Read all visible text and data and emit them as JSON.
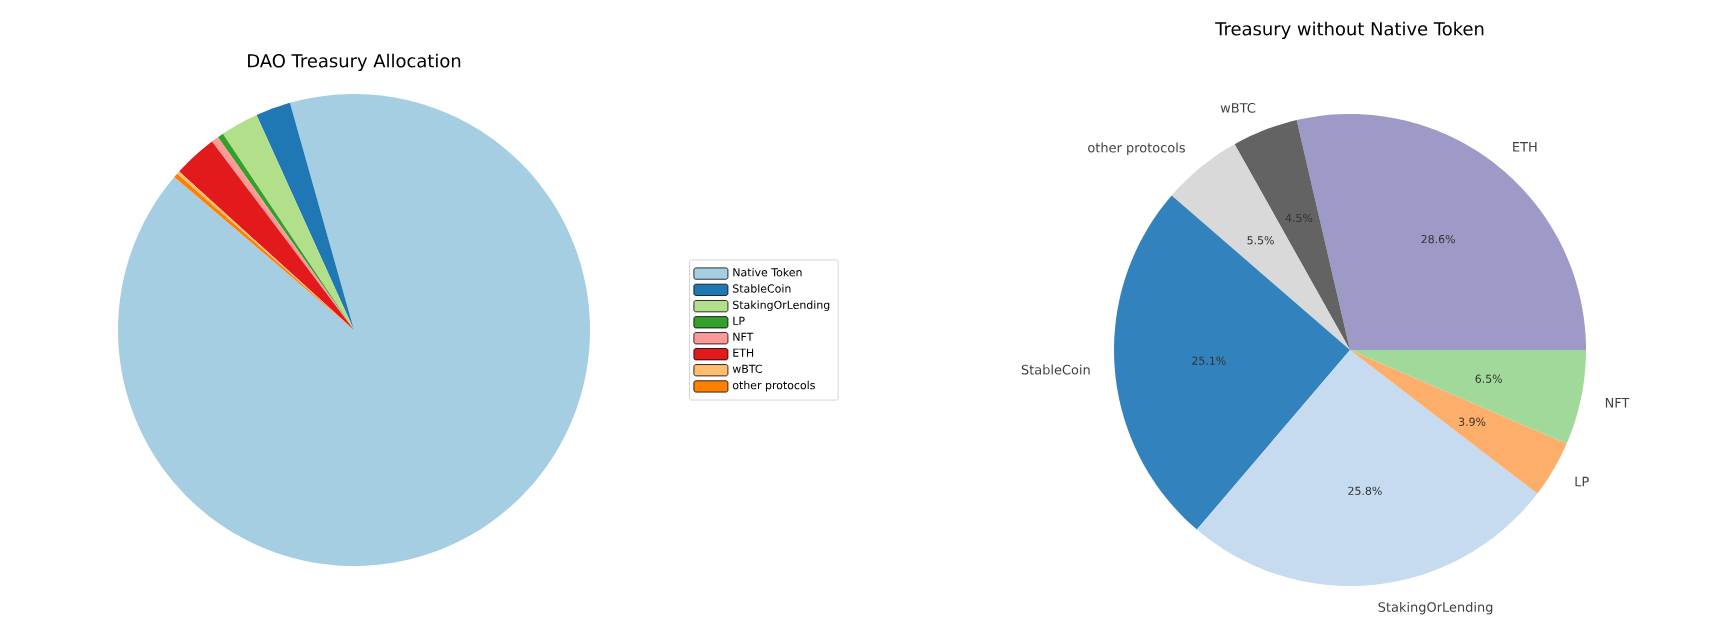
{
  "chart_data": [
    {
      "type": "pie",
      "title": "DAO Treasury Allocation",
      "categories": [
        "Native Token",
        "StableCoin",
        "StakingOrLending",
        "LP",
        "NFT",
        "ETH",
        "wBTC",
        "other protocols"
      ],
      "values": [
        90.6,
        2.4,
        2.6,
        0.4,
        0.5,
        3.0,
        0.2,
        0.3
      ],
      "colors": [
        "#a6cee3",
        "#1f78b4",
        "#b2df8a",
        "#33a02c",
        "#fb9a99",
        "#e31a1c",
        "#fdbf6f",
        "#ff7f00"
      ],
      "legend": "right"
    },
    {
      "type": "pie",
      "title": "Treasury without Native Token",
      "categories": [
        "ETH",
        "wBTC",
        "other protocols",
        "StableCoin",
        "StakingOrLending",
        "LP",
        "NFT"
      ],
      "values": [
        28.6,
        4.5,
        5.5,
        25.1,
        25.8,
        3.9,
        6.5
      ],
      "colors": [
        "#9e9ac8",
        "#636363",
        "#d9d9d9",
        "#3182bd",
        "#c6dbef",
        "#fdae6b",
        "#a1d99b"
      ],
      "value_labels": [
        "28.6%",
        "4.5%",
        "5.5%",
        "25.1%",
        "25.8%",
        "3.9%",
        "6.5%"
      ]
    }
  ]
}
